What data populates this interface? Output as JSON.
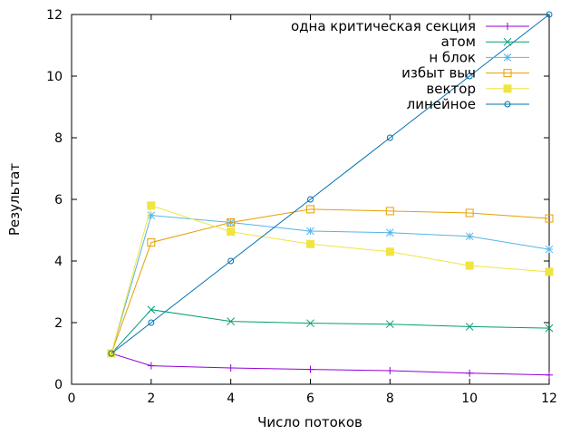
{
  "chart_data": {
    "type": "line",
    "xlabel": "Число потоков",
    "ylabel": "Результат",
    "xlim": [
      0,
      12
    ],
    "ylim": [
      0,
      12
    ],
    "xticks": [
      0,
      2,
      4,
      6,
      8,
      10,
      12
    ],
    "yticks": [
      0,
      2,
      4,
      6,
      8,
      10,
      12
    ],
    "grid": false,
    "legend_position": "top-right",
    "x": [
      1,
      2,
      4,
      6,
      8,
      10,
      12
    ],
    "series": [
      {
        "name": "одна критическая секция",
        "color": "#9400d3",
        "marker": "plus",
        "values": [
          1.0,
          0.6,
          0.53,
          0.48,
          0.44,
          0.36,
          0.3
        ]
      },
      {
        "name": "атом",
        "color": "#009e73",
        "marker": "cross",
        "values": [
          1.0,
          2.42,
          2.04,
          1.98,
          1.95,
          1.87,
          1.82
        ]
      },
      {
        "name": "н блок",
        "color": "#56b4e9",
        "marker": "star",
        "values": [
          1.0,
          5.48,
          5.25,
          4.97,
          4.92,
          4.8,
          4.38
        ]
      },
      {
        "name": "избыт выч",
        "color": "#e69f00",
        "marker": "square-open",
        "values": [
          1.0,
          4.6,
          5.25,
          5.68,
          5.62,
          5.56,
          5.38
        ]
      },
      {
        "name": "вектор",
        "color": "#f0e442",
        "marker": "square-filled",
        "values": [
          1.0,
          5.8,
          4.95,
          4.55,
          4.3,
          3.85,
          3.65
        ]
      },
      {
        "name": "линейное",
        "color": "#0072b2",
        "marker": "circle-open",
        "values": [
          1.0,
          2.0,
          4.0,
          6.0,
          8.0,
          10.0,
          12.0
        ]
      }
    ]
  }
}
